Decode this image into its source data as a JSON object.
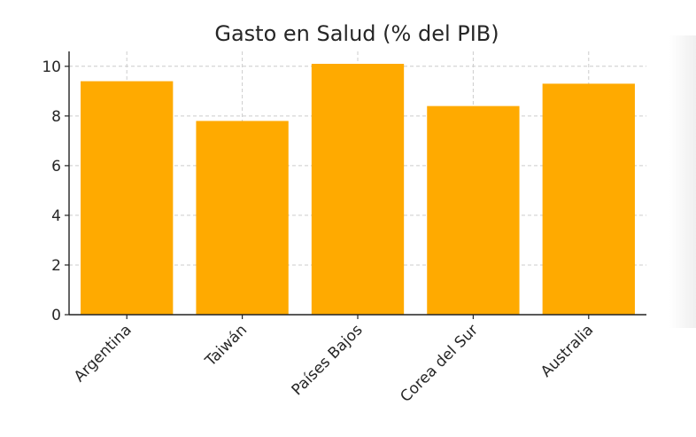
{
  "chart_data": {
    "type": "bar",
    "title": "Gasto en Salud (% del PIB)",
    "xlabel": "",
    "ylabel": "",
    "categories": [
      "Argentina",
      "Taiwán",
      "Países Bajos",
      "Corea del Sur",
      "Australia"
    ],
    "values": [
      9.4,
      7.8,
      10.1,
      8.4,
      9.3
    ],
    "ylim": [
      0,
      10.6
    ],
    "yticks": [
      0,
      2,
      4,
      6,
      8,
      10
    ],
    "grid": true,
    "bar_color": "#FFAA00"
  }
}
